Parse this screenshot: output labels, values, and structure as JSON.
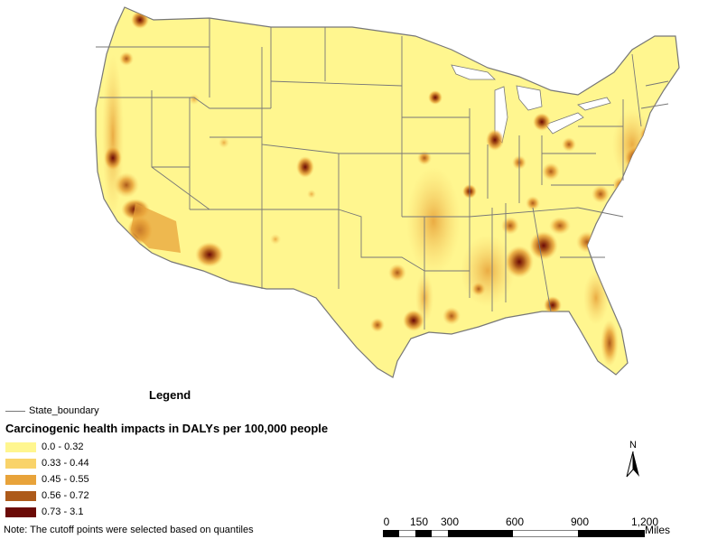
{
  "legend": {
    "title": "Legend",
    "boundary_label": "State_boundary",
    "heading": "Carcinogenic health impacts in DALYs per 100,000 people",
    "classes": [
      {
        "label": "0.0 - 0.32",
        "color": "#FFF68F"
      },
      {
        "label": "0.33 - 0.44",
        "color": "#F9D36A"
      },
      {
        "label": "0.45 - 0.55",
        "color": "#E8A33A"
      },
      {
        "label": "0.56 - 0.72",
        "color": "#AD5A1A"
      },
      {
        "label": "0.73 - 3.1",
        "color": "#6B0A06"
      }
    ]
  },
  "note": "Note: The cutoff points were selected based on quantiles",
  "north_arrow": {
    "label": "N"
  },
  "scale_bar": {
    "ticks": [
      "0",
      "150",
      "300",
      "600",
      "900",
      "1,200"
    ],
    "unit": "Miles"
  },
  "map": {
    "base_color": "#FFF68F",
    "boundary_color": "#777777"
  }
}
